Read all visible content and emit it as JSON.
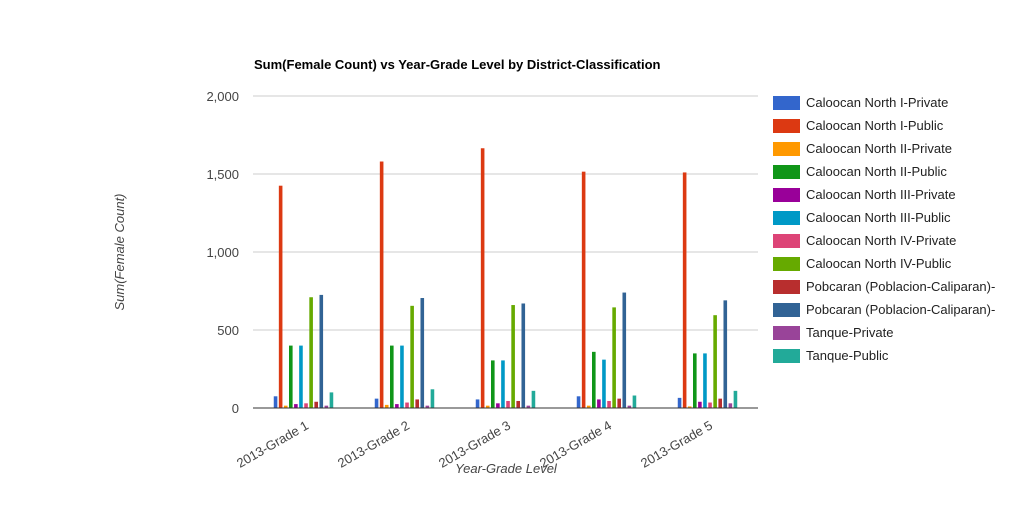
{
  "chart_data": {
    "type": "bar",
    "title": "Sum(Female Count) vs Year-Grade Level by District-Classification",
    "xlabel": "Year-Grade Level",
    "ylabel": "Sum(Female Count)",
    "ylim": [
      0,
      2000
    ],
    "yticks": [
      0,
      500,
      1000,
      1500,
      2000
    ],
    "ytick_labels": [
      "0",
      "500",
      "1,000",
      "1,500",
      "2,000"
    ],
    "grid": true,
    "legend_position": "right",
    "categories": [
      "2013-Grade 1",
      "2013-Grade 2",
      "2013-Grade 3",
      "2013-Grade 4",
      "2013-Grade 5"
    ],
    "series": [
      {
        "name": "Caloocan North I-Private",
        "color": "#3366cc",
        "values": [
          75,
          60,
          55,
          75,
          65
        ]
      },
      {
        "name": "Caloocan North I-Public",
        "color": "#dc3912",
        "values": [
          1425,
          1580,
          1665,
          1515,
          1510
        ]
      },
      {
        "name": "Caloocan North II-Private",
        "color": "#ff9900",
        "values": [
          15,
          20,
          15,
          15,
          10
        ]
      },
      {
        "name": "Caloocan North II-Public",
        "color": "#109618",
        "values": [
          400,
          400,
          305,
          360,
          350
        ]
      },
      {
        "name": "Caloocan North III-Private",
        "color": "#990099",
        "values": [
          25,
          25,
          30,
          55,
          40
        ]
      },
      {
        "name": "Caloocan North III-Public",
        "color": "#0099c6",
        "values": [
          400,
          400,
          305,
          310,
          350
        ]
      },
      {
        "name": "Caloocan North IV-Private",
        "color": "#dd4477",
        "values": [
          30,
          35,
          45,
          45,
          35
        ]
      },
      {
        "name": "Caloocan North IV-Public",
        "color": "#66aa00",
        "values": [
          710,
          655,
          660,
          645,
          595
        ]
      },
      {
        "name": "Pobcaran (Poblacion-Caliparan)-",
        "color": "#b82e2e",
        "values": [
          40,
          55,
          45,
          60,
          60
        ]
      },
      {
        "name": "Pobcaran (Poblacion-Caliparan)-",
        "color": "#316395",
        "values": [
          725,
          705,
          670,
          740,
          690
        ]
      },
      {
        "name": "Tanque-Private",
        "color": "#994499",
        "values": [
          15,
          15,
          15,
          15,
          30
        ]
      },
      {
        "name": "Tanque-Public",
        "color": "#22aa99",
        "values": [
          100,
          120,
          110,
          80,
          110
        ]
      }
    ]
  }
}
